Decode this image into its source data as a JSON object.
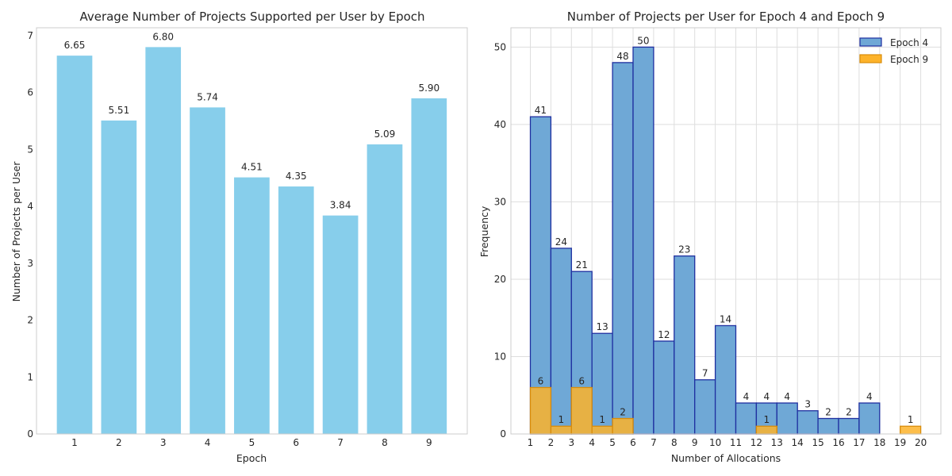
{
  "chart_data": [
    {
      "type": "bar",
      "title": "Average Number of Projects Supported per User by Epoch",
      "xlabel": "Epoch",
      "ylabel": "Number of Projects per User",
      "categories": [
        "1",
        "2",
        "3",
        "4",
        "5",
        "6",
        "7",
        "8",
        "9"
      ],
      "values": [
        6.65,
        5.51,
        6.8,
        5.74,
        4.51,
        4.35,
        3.84,
        5.09,
        5.9
      ],
      "value_labels": [
        "6.65",
        "5.51",
        "6.80",
        "5.74",
        "4.51",
        "4.35",
        "3.84",
        "5.09",
        "5.90"
      ],
      "ylim": [
        0,
        7.14
      ],
      "yticks": [
        0,
        1,
        2,
        3,
        4,
        5,
        6,
        7
      ],
      "grid": false,
      "colors": {
        "bar": "#87ceeb"
      }
    },
    {
      "type": "bar",
      "title": "Number of Projects per User for Epoch 4 and Epoch 9",
      "xlabel": "Number of Allocations",
      "ylabel": "Frequency",
      "bin_edges": [
        1,
        2,
        3,
        4,
        5,
        6,
        7,
        8,
        9,
        10,
        11,
        12,
        13,
        14,
        15,
        16,
        17,
        18,
        19,
        20
      ],
      "xticks": [
        "1",
        "2",
        "3",
        "4",
        "5",
        "6",
        "7",
        "8",
        "9",
        "10",
        "11",
        "12",
        "13",
        "14",
        "15",
        "16",
        "17",
        "18",
        "19",
        "20"
      ],
      "ylim": [
        0,
        52.5
      ],
      "yticks": [
        0,
        10,
        20,
        30,
        40,
        50
      ],
      "grid": true,
      "legend": "top-right",
      "series": [
        {
          "name": "Epoch 4",
          "values": [
            41,
            24,
            21,
            13,
            48,
            50,
            12,
            23,
            7,
            14,
            4,
            4,
            4,
            3,
            2,
            2,
            4,
            0,
            0
          ],
          "labels": [
            "41",
            "24",
            "21",
            "13",
            "48",
            "50",
            "12",
            "23",
            "7",
            "14",
            "4",
            "4",
            "4",
            "3",
            "2",
            "2",
            "4",
            "",
            ""
          ],
          "fill": "#6fa8d6",
          "edge": "#1f2fa0"
        },
        {
          "name": "Epoch 9",
          "values": [
            6,
            1,
            6,
            1,
            2,
            0,
            0,
            0,
            0,
            0,
            0,
            1,
            0,
            0,
            0,
            0,
            0,
            0,
            1
          ],
          "labels": [
            "6",
            "1",
            "6",
            "1",
            "2",
            "",
            "",
            "",
            "",
            "",
            "",
            "1",
            "",
            "",
            "",
            "",
            "",
            "",
            "1"
          ],
          "fill": "#fdb32a",
          "edge": "#d98c0a"
        }
      ]
    }
  ]
}
